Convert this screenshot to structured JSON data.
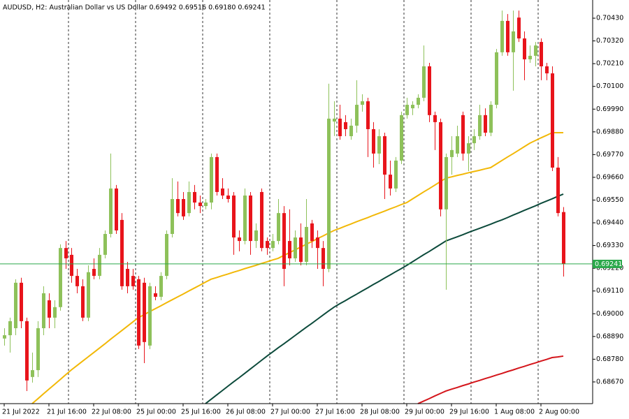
{
  "chart_data": {
    "type": "candlestick",
    "title": "AUDUSD, H2:  Australian Dollar vs US Dollar  0.69492 0.69516 0.69180 0.69241",
    "categories": [
      "21 Jul 2022",
      null,
      null,
      null,
      null,
      null,
      null,
      null,
      "21 Jul 16:00",
      null,
      null,
      null,
      null,
      null,
      null,
      null,
      "22 Jul 08:00",
      null,
      null,
      null,
      null,
      null,
      null,
      null,
      "25 Jul 00:00",
      null,
      null,
      null,
      null,
      null,
      null,
      null,
      "25 Jul 16:00",
      null,
      null,
      null,
      null,
      null,
      null,
      null,
      "26 Jul 08:00",
      null,
      null,
      null,
      null,
      null,
      null,
      null,
      "27 Jul 00:00",
      null,
      null,
      null,
      null,
      null,
      null,
      null,
      "27 Jul 16:00",
      null,
      null,
      null,
      null,
      null,
      null,
      null,
      "28 Jul 08:00",
      null,
      null,
      null,
      null,
      null,
      null,
      null,
      "29 Jul 00:00",
      null,
      null,
      null,
      null,
      null,
      null,
      null,
      "29 Jul 16:00",
      null,
      null,
      null,
      null,
      null,
      null,
      null,
      "1 Aug 08:00",
      null,
      null,
      null,
      null,
      null,
      null,
      null,
      "2 Aug 00:00",
      null,
      null,
      null,
      null
    ],
    "open": [
      0.6888,
      0.68896,
      0.6893,
      0.6915,
      0.68964,
      0.68694,
      0.68727,
      0.6893,
      0.69065,
      0.68981,
      0.69032,
      0.69318,
      0.69285,
      0.69183,
      0.69133,
      0.68981,
      0.69217,
      0.69183,
      0.69285,
      0.69386,
      0.69606,
      0.69454,
      0.69217,
      0.69183,
      0.69167,
      0.6915,
      0.68846,
      0.69099,
      0.69082,
      0.69183,
      0.69386,
      0.69555,
      0.69555,
      0.69487,
      0.69589,
      0.69538,
      0.69521,
      0.69538,
      0.69758,
      0.69606,
      0.69572,
      0.69572,
      0.69369,
      0.69352,
      0.69572,
      0.69352,
      0.69589,
      0.69352,
      0.69318,
      0.69352,
      0.69487,
      0.69352,
      0.69268,
      0.69369,
      0.69251,
      0.69437,
      0.69369,
      0.69318,
      0.69217,
      0.6993,
      0.69944,
      0.69927,
      0.69859,
      0.6991,
      0.70011,
      0.70028,
      0.69893,
      0.69775,
      0.69859,
      0.69673,
      0.69606,
      0.69741,
      0.69961,
      0.69994,
      0.70011,
      0.70045,
      0.70197,
      0.69961,
      0.69927,
      0.69505,
      0.69758,
      0.69775,
      0.69961,
      0.69775,
      0.69825,
      0.69859,
      0.69961,
      0.69876,
      0.70011,
      0.70265,
      0.70417,
      0.70265,
      0.70433,
      0.70332,
      0.70231,
      0.70248,
      0.70315,
      0.70197,
      0.70163,
      0.69707,
      0.69492
    ],
    "high": [
      0.6893,
      0.68981,
      0.69167,
      0.69174,
      0.68981,
      0.68812,
      0.68964,
      0.69133,
      0.69099,
      0.69065,
      0.69336,
      0.69352,
      0.69318,
      0.69217,
      0.69167,
      0.69234,
      0.69268,
      0.69318,
      0.69403,
      0.69775,
      0.69623,
      0.69487,
      0.69251,
      0.69217,
      0.69183,
      0.69174,
      0.6915,
      0.69133,
      0.69201,
      0.69403,
      0.69656,
      0.6964,
      0.69589,
      0.6964,
      0.69623,
      0.69572,
      0.69555,
      0.69775,
      0.69775,
      0.69656,
      0.69606,
      0.69589,
      0.69403,
      0.69606,
      0.69589,
      0.69437,
      0.69606,
      0.69369,
      0.69386,
      0.69555,
      0.69521,
      0.69505,
      0.69403,
      0.69437,
      0.69555,
      0.69454,
      0.69403,
      0.69352,
      0.70113,
      0.70028,
      0.70011,
      0.69961,
      0.69944,
      0.7013,
      0.70062,
      0.70045,
      0.69927,
      0.69893,
      0.69876,
      0.69741,
      0.69758,
      0.69978,
      0.70045,
      0.70028,
      0.70062,
      0.70298,
      0.70214,
      0.69978,
      0.69944,
      0.69775,
      0.69859,
      0.6991,
      0.69978,
      0.69859,
      0.69893,
      0.70011,
      0.69994,
      0.70028,
      0.70281,
      0.70467,
      0.7045,
      0.70467,
      0.70467,
      0.70366,
      0.70298,
      0.70315,
      0.70332,
      0.70214,
      0.70197,
      0.69758,
      0.69516
    ],
    "low": [
      0.68846,
      0.68812,
      0.68896,
      0.6893,
      0.68626,
      0.68667,
      0.68694,
      0.68896,
      0.6893,
      0.6893,
      0.69015,
      0.69217,
      0.6915,
      0.69099,
      0.68964,
      0.68964,
      0.69167,
      0.69167,
      0.69268,
      0.69369,
      0.69386,
      0.69116,
      0.69099,
      0.69116,
      0.68829,
      0.68761,
      0.68829,
      0.69065,
      0.69065,
      0.69167,
      0.69369,
      0.69471,
      0.69454,
      0.69471,
      0.69505,
      0.69487,
      0.69505,
      0.69505,
      0.69572,
      0.69555,
      0.69538,
      0.69285,
      0.69302,
      0.69336,
      0.69285,
      0.69318,
      0.69302,
      0.69285,
      0.69302,
      0.69336,
      0.69133,
      0.69234,
      0.69251,
      0.69234,
      0.69234,
      0.69318,
      0.69217,
      0.69133,
      0.69201,
      0.6986,
      0.69842,
      0.69859,
      0.69842,
      0.69876,
      0.69978,
      0.69758,
      0.69707,
      0.69724,
      0.69555,
      0.69572,
      0.69589,
      0.69724,
      0.69944,
      0.69961,
      0.69994,
      0.70028,
      0.69927,
      0.69792,
      0.69471,
      0.69116,
      0.69673,
      0.69758,
      0.69741,
      0.6969,
      0.69792,
      0.69842,
      0.69859,
      0.69859,
      0.69994,
      0.70248,
      0.70248,
      0.70079,
      0.70315,
      0.7013,
      0.70214,
      0.70197,
      0.7013,
      0.7013,
      0.6969,
      0.69471,
      0.6918
    ],
    "close": [
      0.68896,
      0.68964,
      0.6915,
      0.68964,
      0.68677,
      0.68727,
      0.6893,
      0.69099,
      0.68981,
      0.69032,
      0.69318,
      0.69268,
      0.69183,
      0.69133,
      0.68981,
      0.69201,
      0.69183,
      0.69285,
      0.69386,
      0.69606,
      0.69403,
      0.69133,
      0.69133,
      0.69133,
      0.68846,
      0.68863,
      0.69133,
      0.69082,
      0.69183,
      0.69386,
      0.69555,
      0.69487,
      0.69471,
      0.69589,
      0.69538,
      0.69521,
      0.69538,
      0.69758,
      0.69589,
      0.69572,
      0.69555,
      0.69369,
      0.69352,
      0.69572,
      0.69352,
      0.69403,
      0.69318,
      0.69318,
      0.69352,
      0.69487,
      0.69217,
      0.69268,
      0.69369,
      0.69251,
      0.6942,
      0.69352,
      0.69318,
      0.69217,
      0.69944,
      0.69944,
      0.69859,
      0.69893,
      0.6991,
      0.70011,
      0.70028,
      0.69893,
      0.69775,
      0.69859,
      0.69673,
      0.69606,
      0.69741,
      0.69961,
      0.70011,
      0.70011,
      0.70045,
      0.70197,
      0.69961,
      0.69927,
      0.69505,
      0.69758,
      0.69792,
      0.69859,
      0.69775,
      0.69825,
      0.69859,
      0.69961,
      0.69876,
      0.70011,
      0.70265,
      0.70417,
      0.70265,
      0.70366,
      0.70332,
      0.70231,
      0.70248,
      0.70298,
      0.70197,
      0.70163,
      0.69707,
      0.69487,
      0.69241
    ],
    "up_color": "#8ec15a",
    "down_color": "#e8141b",
    "series": [
      {
        "color": "#f2b807",
        "values": [
          null,
          null,
          null,
          null,
          null,
          0.68565,
          0.68588,
          0.68612,
          0.68635,
          0.68658,
          0.68681,
          0.68705,
          0.68728,
          0.68749,
          0.6877,
          0.68791,
          0.68812,
          0.68833,
          0.68854,
          0.68876,
          0.68897,
          0.68918,
          0.68939,
          0.6896,
          0.68981,
          0.68995,
          0.6901,
          0.69024,
          0.69038,
          0.69053,
          0.69067,
          0.69081,
          0.69095,
          0.6911,
          0.69124,
          0.69138,
          0.69153,
          0.69167,
          0.69175,
          0.69184,
          0.69192,
          0.69201,
          0.69209,
          0.69218,
          0.69226,
          0.69234,
          0.69243,
          0.69251,
          0.6926,
          0.69268,
          0.69282,
          0.69295,
          0.69309,
          0.69322,
          0.69336,
          0.69349,
          0.69363,
          0.69376,
          0.6939,
          0.69403,
          0.69413,
          0.69424,
          0.69434,
          0.69445,
          0.69455,
          0.69465,
          0.69476,
          0.69486,
          0.69496,
          0.69507,
          0.69517,
          0.69528,
          0.69538,
          0.69555,
          0.69572,
          0.69589,
          0.69605,
          0.69622,
          0.69639,
          0.69656,
          0.69662,
          0.69669,
          0.69675,
          0.69682,
          0.69688,
          0.69694,
          0.69701,
          0.69707,
          0.69724,
          0.69741,
          0.69758,
          0.69774,
          0.69791,
          0.69808,
          0.69825,
          0.69838,
          0.69851,
          0.69863,
          0.69876,
          0.69876,
          0.69876
        ]
      },
      {
        "color": "#0c4a3b",
        "values": [
          null,
          null,
          null,
          null,
          null,
          null,
          null,
          null,
          null,
          null,
          null,
          null,
          null,
          null,
          null,
          null,
          null,
          null,
          null,
          null,
          null,
          null,
          null,
          null,
          null,
          null,
          null,
          null,
          null,
          null,
          null,
          null,
          null,
          null,
          null,
          null,
          0.68565,
          0.68586,
          0.68607,
          0.68628,
          0.68649,
          0.6867,
          0.6869,
          0.68711,
          0.68732,
          0.68753,
          0.68774,
          0.68795,
          0.68815,
          0.68835,
          0.68854,
          0.68874,
          0.68894,
          0.68914,
          0.68934,
          0.68953,
          0.68973,
          0.68993,
          0.69013,
          0.69032,
          0.69048,
          0.69063,
          0.69079,
          0.69094,
          0.6911,
          0.69125,
          0.69141,
          0.69156,
          0.69172,
          0.69187,
          0.69203,
          0.69218,
          0.69234,
          0.69251,
          0.69268,
          0.69285,
          0.69301,
          0.69318,
          0.69335,
          0.69352,
          0.69362,
          0.69372,
          0.69382,
          0.69393,
          0.69403,
          0.69413,
          0.69423,
          0.69433,
          0.69444,
          0.69454,
          0.69465,
          0.69477,
          0.69488,
          0.695,
          0.69511,
          0.69522,
          0.69534,
          0.69545,
          0.69556,
          0.69568,
          0.69579
        ]
      },
      {
        "color": "#d4151b",
        "values": [
          null,
          null,
          null,
          null,
          null,
          null,
          null,
          null,
          null,
          null,
          null,
          null,
          null,
          null,
          null,
          null,
          null,
          null,
          null,
          null,
          null,
          null,
          null,
          null,
          null,
          null,
          null,
          null,
          null,
          null,
          null,
          null,
          null,
          null,
          null,
          null,
          null,
          null,
          null,
          null,
          null,
          null,
          null,
          null,
          null,
          null,
          null,
          null,
          null,
          null,
          null,
          null,
          null,
          null,
          null,
          null,
          null,
          null,
          null,
          null,
          null,
          null,
          null,
          null,
          null,
          null,
          null,
          null,
          null,
          null,
          null,
          null,
          null,
          null,
          0.68565,
          0.68577,
          0.68589,
          0.68602,
          0.68614,
          0.68626,
          0.68635,
          0.68643,
          0.68652,
          0.6866,
          0.68669,
          0.68677,
          0.68686,
          0.68694,
          0.68703,
          0.68711,
          0.6872,
          0.68728,
          0.68737,
          0.68745,
          0.68754,
          0.68762,
          0.68771,
          0.68779,
          0.68788,
          0.68791,
          0.68795
        ]
      }
    ],
    "price_line": 0.69241,
    "price_line_color": "#2aa84a",
    "period_separators": true,
    "grid": false,
    "ylim": [
      0.68565,
      0.70518
    ],
    "yticks": [
      {
        "value": 0.7043,
        "label": "0.70430"
      },
      {
        "value": 0.7032,
        "label": "0.70320"
      },
      {
        "value": 0.7021,
        "label": "0.70210"
      },
      {
        "value": 0.701,
        "label": "0.70100"
      },
      {
        "value": 0.6999,
        "label": "0.69990"
      },
      {
        "value": 0.6988,
        "label": "0.69880"
      },
      {
        "value": 0.6977,
        "label": "0.69770"
      },
      {
        "value": 0.6966,
        "label": "0.69660"
      },
      {
        "value": 0.6955,
        "label": "0.69550"
      },
      {
        "value": 0.6944,
        "label": "0.69440"
      },
      {
        "value": 0.6933,
        "label": "0.69330"
      },
      {
        "value": 0.6922,
        "label": "0.69220"
      },
      {
        "value": 0.6911,
        "label": "0.69110"
      },
      {
        "value": 0.69,
        "label": "0.69000"
      },
      {
        "value": 0.6889,
        "label": "0.68890"
      },
      {
        "value": 0.6878,
        "label": "0.68780"
      },
      {
        "value": 0.6867,
        "label": "0.68670"
      }
    ]
  }
}
